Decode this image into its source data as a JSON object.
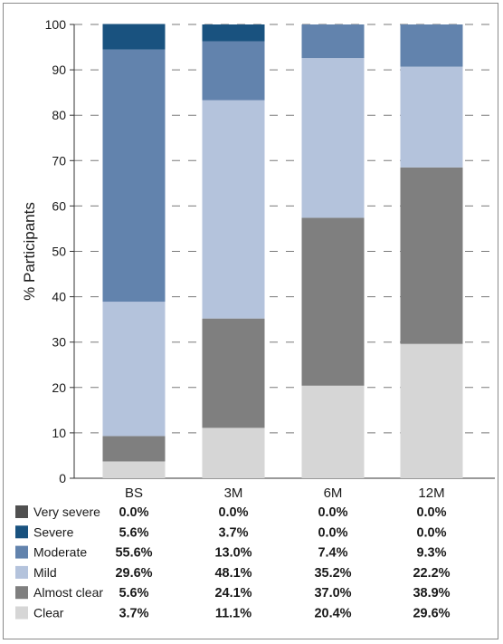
{
  "chart_data": {
    "type": "bar",
    "stacked": true,
    "title": "",
    "xlabel": "",
    "ylabel": "% Participants",
    "ylim": [
      0,
      100
    ],
    "yticks": [
      0,
      10,
      20,
      30,
      40,
      50,
      60,
      70,
      80,
      90,
      100
    ],
    "grid": "dashed horizontal",
    "categories": [
      "BS",
      "3M",
      "6M",
      "12M"
    ],
    "series": [
      {
        "name": "Clear",
        "color": "#d6d6d6",
        "values": [
          3.7,
          11.1,
          20.4,
          29.6
        ],
        "labels": [
          "3.7%",
          "11.1%",
          "20.4%",
          "29.6%"
        ]
      },
      {
        "name": "Almost clear",
        "color": "#7f7f7f",
        "values": [
          5.6,
          24.1,
          37.0,
          38.9
        ],
        "labels": [
          "5.6%",
          "24.1%",
          "37.0%",
          "38.9%"
        ]
      },
      {
        "name": "Mild",
        "color": "#b4c3dc",
        "values": [
          29.6,
          48.1,
          35.2,
          22.2
        ],
        "labels": [
          "29.6%",
          "48.1%",
          "35.2%",
          "22.2%"
        ]
      },
      {
        "name": "Moderate",
        "color": "#6283ad",
        "values": [
          55.6,
          13.0,
          7.4,
          9.3
        ],
        "labels": [
          "55.6%",
          "13.0%",
          "7.4%",
          "9.3%"
        ]
      },
      {
        "name": "Severe",
        "color": "#19527f",
        "values": [
          5.6,
          3.7,
          0.0,
          0.0
        ],
        "labels": [
          "5.6%",
          "3.7%",
          "0.0%",
          "0.0%"
        ]
      },
      {
        "name": "Very severe",
        "color": "#505050",
        "values": [
          0.0,
          0.0,
          0.0,
          0.0
        ],
        "labels": [
          "0.0%",
          "0.0%",
          "0.0%",
          "0.0%"
        ]
      }
    ],
    "legend_placement": "table below chart",
    "legend_order": [
      "Very severe",
      "Severe",
      "Moderate",
      "Mild",
      "Almost clear",
      "Clear"
    ]
  }
}
